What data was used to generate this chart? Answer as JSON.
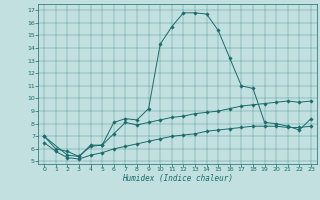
{
  "title": "",
  "xlabel": "Humidex (Indice chaleur)",
  "xlim": [
    -0.5,
    23.5
  ],
  "ylim": [
    4.8,
    17.5
  ],
  "yticks": [
    5,
    6,
    7,
    8,
    9,
    10,
    11,
    12,
    13,
    14,
    15,
    16,
    17
  ],
  "xticks": [
    0,
    1,
    2,
    3,
    4,
    5,
    6,
    7,
    8,
    9,
    10,
    11,
    12,
    13,
    14,
    15,
    16,
    17,
    18,
    19,
    20,
    21,
    22,
    23
  ],
  "bg_color": "#c2e0e0",
  "line_color": "#1a6b6b",
  "line1_x": [
    0,
    1,
    2,
    3,
    4,
    5,
    6,
    7,
    8,
    9,
    10,
    11,
    12,
    13,
    14,
    15,
    16,
    17,
    18,
    19,
    20,
    21,
    22,
    23
  ],
  "line1_y": [
    7.0,
    6.0,
    5.8,
    5.4,
    6.3,
    6.3,
    8.1,
    8.4,
    8.3,
    9.2,
    14.3,
    15.7,
    16.8,
    16.8,
    16.7,
    15.4,
    13.2,
    11.0,
    10.8,
    8.1,
    8.0,
    7.8,
    7.5,
    8.4
  ],
  "line2_x": [
    0,
    2,
    3,
    4,
    5,
    6,
    7,
    8,
    9,
    10,
    11,
    12,
    13,
    14,
    15,
    16,
    17,
    18,
    19,
    20,
    21,
    22,
    23
  ],
  "line2_y": [
    7.0,
    5.5,
    5.4,
    6.2,
    6.3,
    7.2,
    8.1,
    7.9,
    8.1,
    8.3,
    8.5,
    8.6,
    8.8,
    8.9,
    9.0,
    9.2,
    9.4,
    9.5,
    9.6,
    9.7,
    9.8,
    9.7,
    9.8
  ],
  "line3_x": [
    0,
    1,
    2,
    3,
    4,
    5,
    6,
    7,
    8,
    9,
    10,
    11,
    12,
    13,
    14,
    15,
    16,
    17,
    18,
    19,
    20,
    21,
    22,
    23
  ],
  "line3_y": [
    6.5,
    5.8,
    5.3,
    5.2,
    5.5,
    5.7,
    6.0,
    6.2,
    6.4,
    6.6,
    6.8,
    7.0,
    7.1,
    7.2,
    7.4,
    7.5,
    7.6,
    7.7,
    7.8,
    7.8,
    7.8,
    7.7,
    7.7,
    7.8
  ]
}
